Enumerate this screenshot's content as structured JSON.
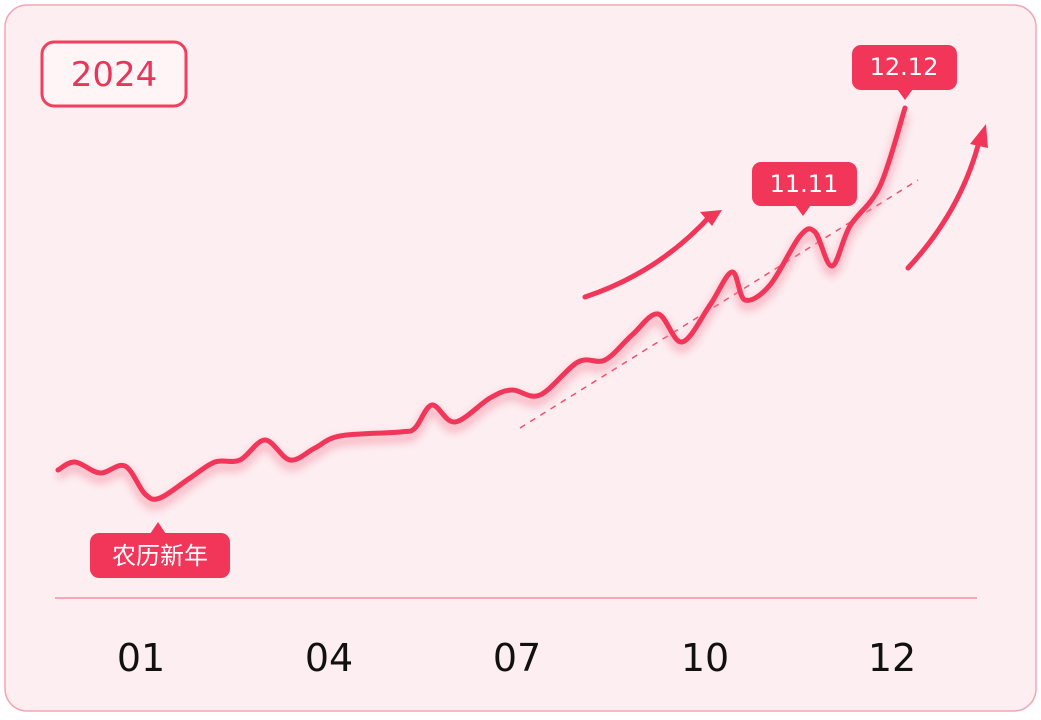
{
  "badge": "2024",
  "callouts": [
    "农历新年",
    "11.11",
    "12.12"
  ],
  "x_labels": [
    "01",
    "04",
    "07",
    "10",
    "12"
  ]
}
